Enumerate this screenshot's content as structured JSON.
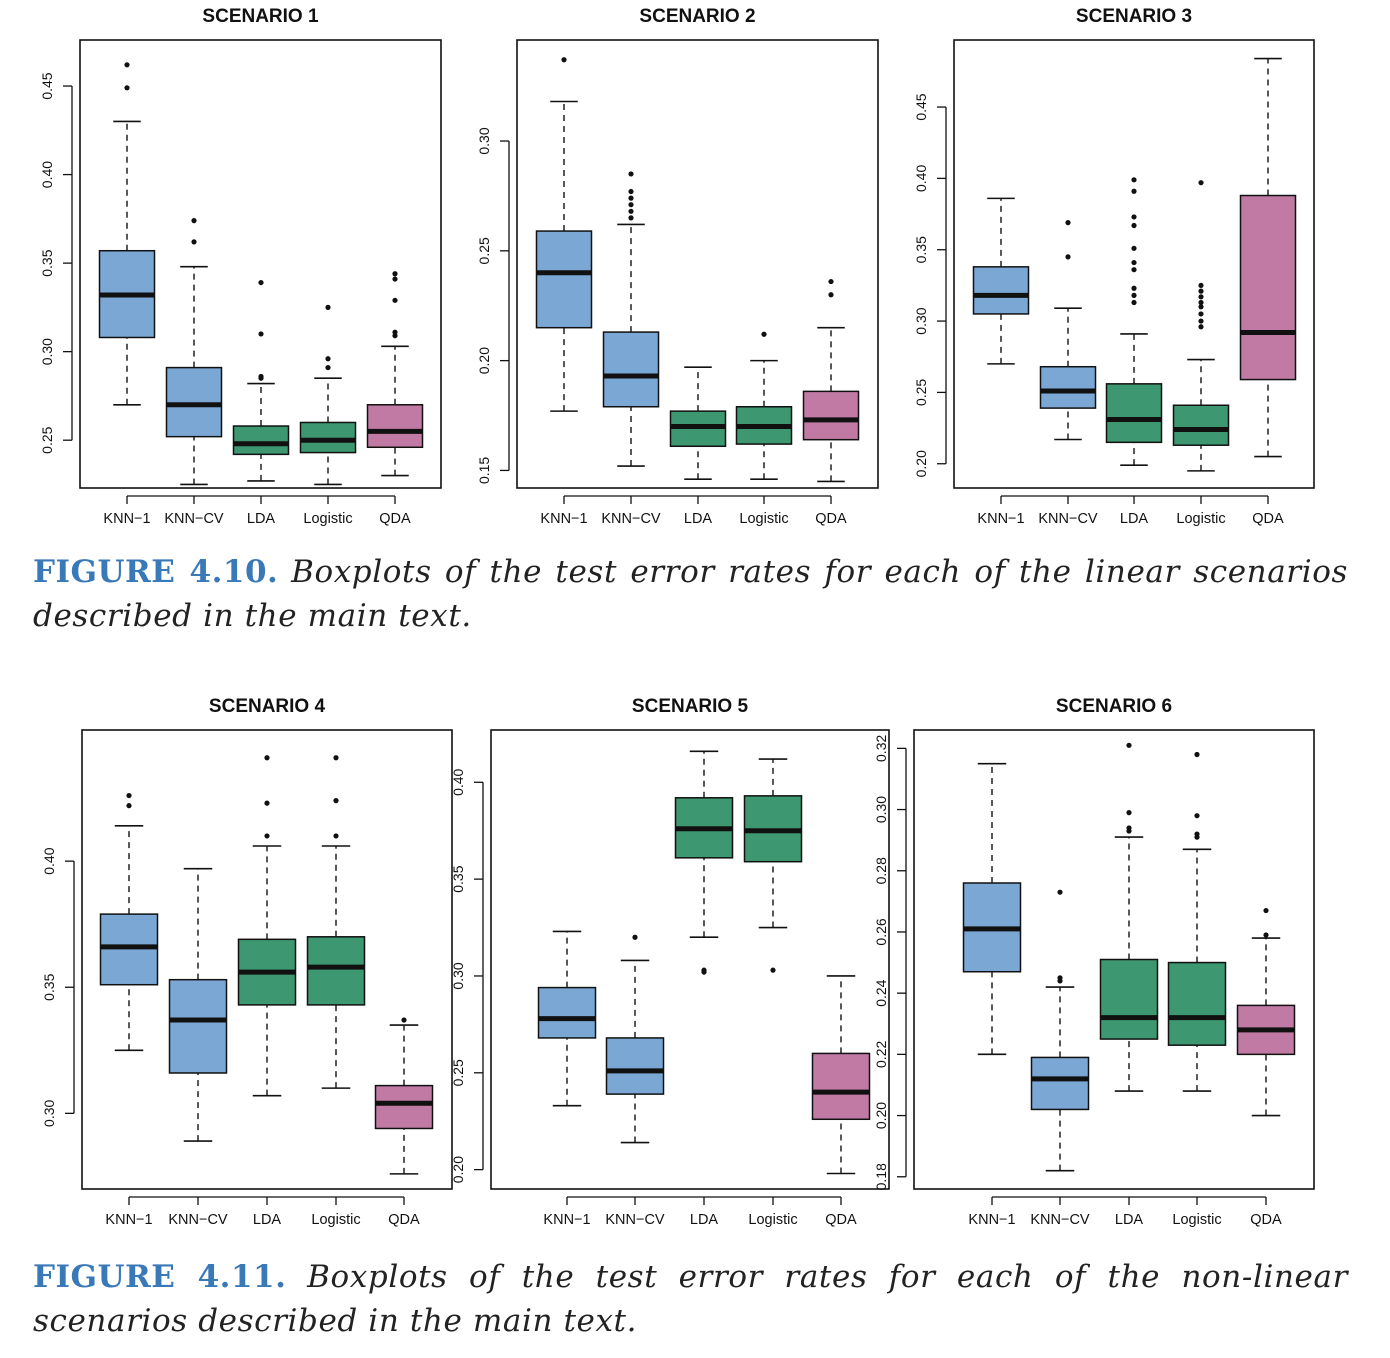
{
  "colors": {
    "knn": "#7ba7d4",
    "linear": "#3d9770",
    "qda": "#c17aa3",
    "median": "#111111",
    "frame": "#111111"
  },
  "figures": [
    {
      "label": "FIGURE 4.10.",
      "caption": "Boxplots of the test error rates for each of the linear scenarios described in the main text."
    },
    {
      "label": "FIGURE 4.11.",
      "caption": "Boxplots of the test error rates for each of the non-linear scenarios described in the main text."
    }
  ],
  "chart_data": [
    {
      "type": "boxplot",
      "title": "SCENARIO 1",
      "categories": [
        "KNN−1",
        "KNN−CV",
        "LDA",
        "Logistic",
        "QDA"
      ],
      "ylim": [
        0.223,
        0.476
      ],
      "yticks": [
        0.25,
        0.3,
        0.35,
        0.4,
        0.45
      ],
      "boxes": [
        {
          "lo": 0.27,
          "q1": 0.308,
          "med": 0.332,
          "q3": 0.357,
          "hi": 0.43,
          "out": [
            0.449,
            0.462
          ]
        },
        {
          "lo": 0.225,
          "q1": 0.252,
          "med": 0.27,
          "q3": 0.291,
          "hi": 0.348,
          "out": [
            0.362,
            0.374
          ]
        },
        {
          "lo": 0.227,
          "q1": 0.242,
          "med": 0.248,
          "q3": 0.258,
          "hi": 0.282,
          "out": [
            0.285,
            0.286,
            0.31,
            0.339
          ]
        },
        {
          "lo": 0.225,
          "q1": 0.243,
          "med": 0.25,
          "q3": 0.26,
          "hi": 0.285,
          "out": [
            0.291,
            0.296,
            0.325
          ]
        },
        {
          "lo": 0.23,
          "q1": 0.246,
          "med": 0.255,
          "q3": 0.27,
          "hi": 0.303,
          "out": [
            0.309,
            0.311,
            0.329,
            0.341,
            0.344
          ]
        }
      ]
    },
    {
      "type": "boxplot",
      "title": "SCENARIO 2",
      "categories": [
        "KNN−1",
        "KNN−CV",
        "LDA",
        "Logistic",
        "QDA"
      ],
      "ylim": [
        0.142,
        0.346
      ],
      "yticks": [
        0.15,
        0.2,
        0.25,
        0.3
      ],
      "boxes": [
        {
          "lo": 0.177,
          "q1": 0.215,
          "med": 0.24,
          "q3": 0.259,
          "hi": 0.318,
          "out": [
            0.337
          ]
        },
        {
          "lo": 0.152,
          "q1": 0.179,
          "med": 0.193,
          "q3": 0.213,
          "hi": 0.262,
          "out": [
            0.265,
            0.268,
            0.271,
            0.274,
            0.277,
            0.285
          ]
        },
        {
          "lo": 0.146,
          "q1": 0.161,
          "med": 0.17,
          "q3": 0.177,
          "hi": 0.197
        },
        {
          "lo": 0.146,
          "q1": 0.162,
          "med": 0.17,
          "q3": 0.179,
          "hi": 0.2,
          "out": [
            0.212
          ]
        },
        {
          "lo": 0.145,
          "q1": 0.164,
          "med": 0.173,
          "q3": 0.186,
          "hi": 0.215,
          "out": [
            0.23,
            0.236
          ]
        }
      ]
    },
    {
      "type": "boxplot",
      "title": "SCENARIO 3",
      "categories": [
        "KNN−1",
        "KNN−CV",
        "LDA",
        "Logistic",
        "QDA"
      ],
      "ylim": [
        0.183,
        0.497
      ],
      "yticks": [
        0.2,
        0.25,
        0.3,
        0.35,
        0.4,
        0.45
      ],
      "boxes": [
        {
          "lo": 0.27,
          "q1": 0.305,
          "med": 0.318,
          "q3": 0.338,
          "hi": 0.386
        },
        {
          "lo": 0.217,
          "q1": 0.239,
          "med": 0.251,
          "q3": 0.268,
          "hi": 0.309,
          "out": [
            0.345,
            0.369
          ]
        },
        {
          "lo": 0.199,
          "q1": 0.215,
          "med": 0.231,
          "q3": 0.256,
          "hi": 0.291,
          "out": [
            0.313,
            0.318,
            0.323,
            0.336,
            0.341,
            0.351,
            0.367,
            0.373,
            0.391,
            0.399
          ]
        },
        {
          "lo": 0.195,
          "q1": 0.213,
          "med": 0.224,
          "q3": 0.241,
          "hi": 0.273,
          "out": [
            0.296,
            0.3,
            0.305,
            0.31,
            0.313,
            0.317,
            0.321,
            0.325,
            0.397
          ]
        },
        {
          "lo": 0.205,
          "q1": 0.259,
          "med": 0.292,
          "q3": 0.388,
          "hi": 0.484
        }
      ]
    },
    {
      "type": "boxplot",
      "title": "SCENARIO 4",
      "categories": [
        "KNN−1",
        "KNN−CV",
        "LDA",
        "Logistic",
        "QDA"
      ],
      "ylim": [
        0.27,
        0.452
      ],
      "yticks": [
        0.3,
        0.35,
        0.4
      ],
      "boxes": [
        {
          "lo": 0.325,
          "q1": 0.351,
          "med": 0.366,
          "q3": 0.379,
          "hi": 0.414,
          "out": [
            0.422,
            0.426
          ]
        },
        {
          "lo": 0.289,
          "q1": 0.316,
          "med": 0.337,
          "q3": 0.353,
          "hi": 0.397
        },
        {
          "lo": 0.307,
          "q1": 0.343,
          "med": 0.356,
          "q3": 0.369,
          "hi": 0.406,
          "out": [
            0.41,
            0.423,
            0.441
          ]
        },
        {
          "lo": 0.31,
          "q1": 0.343,
          "med": 0.358,
          "q3": 0.37,
          "hi": 0.406,
          "out": [
            0.41,
            0.424,
            0.441
          ]
        },
        {
          "lo": 0.276,
          "q1": 0.294,
          "med": 0.304,
          "q3": 0.311,
          "hi": 0.335,
          "out": [
            0.337
          ]
        }
      ]
    },
    {
      "type": "boxplot",
      "title": "SCENARIO 5",
      "categories": [
        "KNN−1",
        "KNN−CV",
        "LDA",
        "Logistic",
        "QDA"
      ],
      "ylim": [
        0.19,
        0.427
      ],
      "yticks": [
        0.2,
        0.25,
        0.3,
        0.35,
        0.4
      ],
      "boxes": [
        {
          "lo": 0.233,
          "q1": 0.268,
          "med": 0.278,
          "q3": 0.294,
          "hi": 0.323
        },
        {
          "lo": 0.214,
          "q1": 0.239,
          "med": 0.251,
          "q3": 0.268,
          "hi": 0.308,
          "out": [
            0.32
          ]
        },
        {
          "lo": 0.32,
          "q1": 0.361,
          "med": 0.376,
          "q3": 0.392,
          "hi": 0.416,
          "out": [
            0.302,
            0.303
          ]
        },
        {
          "lo": 0.325,
          "q1": 0.359,
          "med": 0.375,
          "q3": 0.393,
          "hi": 0.412,
          "out": [
            0.303
          ]
        },
        {
          "lo": 0.198,
          "q1": 0.226,
          "med": 0.24,
          "q3": 0.26,
          "hi": 0.3
        }
      ]
    },
    {
      "type": "boxplot",
      "title": "SCENARIO 6",
      "categories": [
        "KNN−1",
        "KNN−CV",
        "LDA",
        "Logistic",
        "QDA"
      ],
      "ylim": [
        0.176,
        0.326
      ],
      "yticks": [
        0.18,
        0.2,
        0.22,
        0.24,
        0.26,
        0.28,
        0.3,
        0.32
      ],
      "boxes": [
        {
          "lo": 0.22,
          "q1": 0.247,
          "med": 0.261,
          "q3": 0.276,
          "hi": 0.315
        },
        {
          "lo": 0.182,
          "q1": 0.202,
          "med": 0.212,
          "q3": 0.219,
          "hi": 0.242,
          "out": [
            0.244,
            0.245,
            0.273
          ]
        },
        {
          "lo": 0.208,
          "q1": 0.225,
          "med": 0.232,
          "q3": 0.251,
          "hi": 0.291,
          "out": [
            0.293,
            0.294,
            0.299,
            0.321
          ]
        },
        {
          "lo": 0.208,
          "q1": 0.223,
          "med": 0.232,
          "q3": 0.25,
          "hi": 0.287,
          "out": [
            0.291,
            0.292,
            0.298,
            0.318
          ]
        },
        {
          "lo": 0.2,
          "q1": 0.22,
          "med": 0.228,
          "q3": 0.236,
          "hi": 0.258,
          "out": [
            0.259,
            0.267
          ]
        }
      ]
    }
  ]
}
